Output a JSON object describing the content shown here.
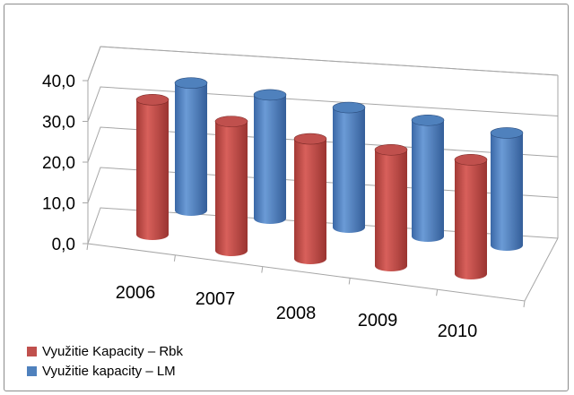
{
  "chart_data": {
    "type": "bar",
    "bar_shape": "3d-cylinder",
    "categories": [
      "2006",
      "2007",
      "2008",
      "2009",
      "2010"
    ],
    "series": [
      {
        "name": "Využitie Kapacity – Rbk",
        "color": "#c0504d",
        "values": [
          36.0,
          34.5,
          32.0,
          31.0,
          30.5
        ]
      },
      {
        "name": "Využitie kapacity – LM",
        "color": "#4f81bd",
        "values": [
          34.0,
          33.0,
          32.0,
          31.0,
          30.0
        ]
      }
    ],
    "y_ticks": [
      "0,0",
      "10,0",
      "20,0",
      "30,0",
      "40,0"
    ],
    "ylim": [
      0,
      40
    ],
    "grid": true,
    "legend_position": "bottom-left"
  }
}
